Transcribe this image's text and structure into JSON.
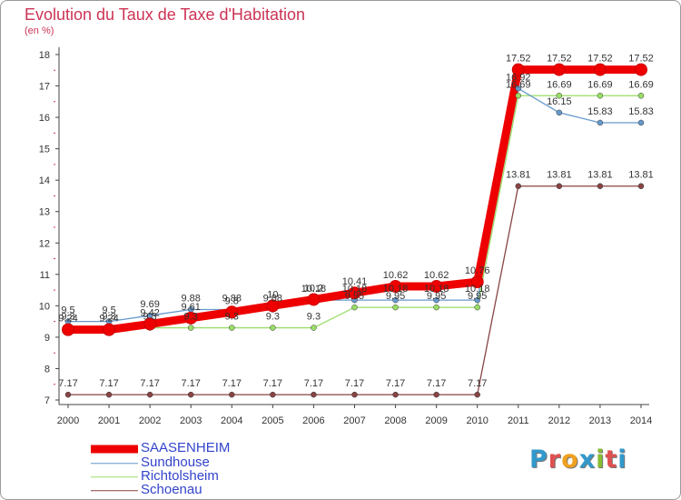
{
  "title": "Evolution du Taux de Taxe d'Habitation",
  "unit_label": "(en %)",
  "chart_data": {
    "type": "line",
    "x": [
      "2000",
      "2001",
      "2002",
      "2003",
      "2004",
      "2005",
      "2006",
      "2007",
      "2008",
      "2009",
      "2010",
      "2011",
      "2012",
      "2013",
      "2014"
    ],
    "ylim": [
      7,
      18
    ],
    "yticks": [
      "7",
      "8",
      "9",
      "10",
      "11",
      "12",
      "13",
      "14",
      "15",
      "16",
      "17",
      "18"
    ],
    "grid": false,
    "legend_position": "bottom-left",
    "series": [
      {
        "name": "SAASENHEIM",
        "color": "#ee0000",
        "values": [
          9.24,
          9.24,
          9.42,
          9.61,
          9.8,
          10.0,
          10.2,
          10.41,
          10.62,
          10.62,
          10.76,
          17.52,
          17.52,
          17.52,
          17.52
        ],
        "labels": [
          "9.24",
          "9.24",
          "9.42",
          "9.61",
          "9.8",
          "10",
          "10.2",
          "10.41",
          "10.62",
          "10.62",
          "10.76",
          "17.52",
          "17.52",
          "17.52",
          "17.52"
        ]
      },
      {
        "name": "Sundhouse",
        "color": "#6699cc",
        "values": [
          9.5,
          9.5,
          9.69,
          9.88,
          9.88,
          9.88,
          10.18,
          10.18,
          10.18,
          10.18,
          10.18,
          16.92,
          16.15,
          15.83,
          15.83
        ],
        "labels": [
          "9.5",
          "9.5",
          "9.69",
          "9.88",
          "9.88",
          "9.88",
          "10.18",
          "10.18",
          "10.18",
          "10.18",
          "10.18",
          "16.92",
          "16.15",
          "15.83",
          "15.83"
        ]
      },
      {
        "name": "Richtolsheim",
        "color": "#99dd66",
        "values": [
          9.3,
          9.3,
          9.3,
          9.3,
          9.3,
          9.3,
          9.3,
          9.95,
          9.95,
          9.95,
          9.95,
          16.69,
          16.69,
          16.69,
          16.69
        ],
        "labels": [
          "9.3",
          "9.3",
          "9.3",
          "9.3",
          "9.3",
          "9.3",
          "9.3",
          "9.95",
          "9.95",
          "9.95",
          "9.95",
          "16.69",
          "16.69",
          "16.69",
          "16.69"
        ]
      },
      {
        "name": "Schoenau",
        "color": "#884444",
        "values": [
          7.17,
          7.17,
          7.17,
          7.17,
          7.17,
          7.17,
          7.17,
          7.17,
          7.17,
          7.17,
          7.17,
          13.81,
          13.81,
          13.81,
          13.81
        ],
        "labels": [
          "7.17",
          "7.17",
          "7.17",
          "7.17",
          "7.17",
          "7.17",
          "7.17",
          "7.17",
          "7.17",
          "7.17",
          "7.17",
          "13.81",
          "13.81",
          "13.81",
          "13.81"
        ]
      }
    ]
  },
  "logo": {
    "text": "Proxiti",
    "colors": [
      "#3399cc",
      "#e05050",
      "#f0a020",
      "#3399cc",
      "#88bb33",
      "#e05050",
      "#3399cc"
    ]
  }
}
